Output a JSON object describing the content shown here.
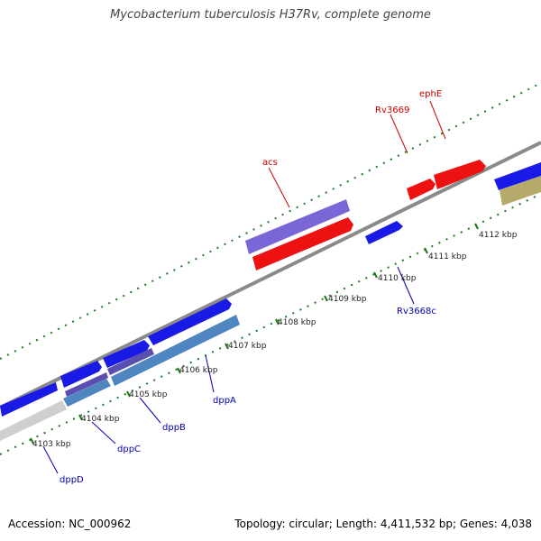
{
  "title": "Mycobacterium tuberculosis H37Rv, complete genome",
  "footer": {
    "accession": "Accession: NC_000962",
    "topology": "Topology: circular; Length: 4,411,532 bp; Genes: 4,038"
  },
  "colors": {
    "backbone": "#8a8a8a",
    "forward_gene": "#1a1ae6",
    "reverse_gene": "#ee1111",
    "operon_purple": "#7a66d6",
    "operon_steel": "#4f86c2",
    "olive_feature": "#b5aa6a",
    "grey_feature": "#cfcfcf",
    "tick": "#1f7a1f",
    "label_red": "#cc0000",
    "label_blue": "#0000bb"
  },
  "ruler": {
    "ticks": [
      "4103 kbp",
      "4104 kbp",
      "4105 kbp",
      "4106 kbp",
      "4107 kbp",
      "4108 kbp",
      "4109 kbp",
      "4110 kbp",
      "4111 kbp",
      "4112 kbp"
    ]
  },
  "genes": [
    {
      "label": "dppD",
      "strand": "forward",
      "color_key": "label_blue"
    },
    {
      "label": "dppC",
      "strand": "forward",
      "color_key": "label_blue"
    },
    {
      "label": "dppB",
      "strand": "forward",
      "color_key": "label_blue"
    },
    {
      "label": "dppA",
      "strand": "forward",
      "color_key": "label_blue"
    },
    {
      "label": "Rv3668c",
      "strand": "forward",
      "color_key": "label_blue"
    },
    {
      "label": "acs",
      "strand": "reverse",
      "color_key": "label_red"
    },
    {
      "label": "Rv3669",
      "strand": "reverse",
      "color_key": "label_red"
    },
    {
      "label": "ephE",
      "strand": "reverse",
      "color_key": "label_red"
    }
  ]
}
